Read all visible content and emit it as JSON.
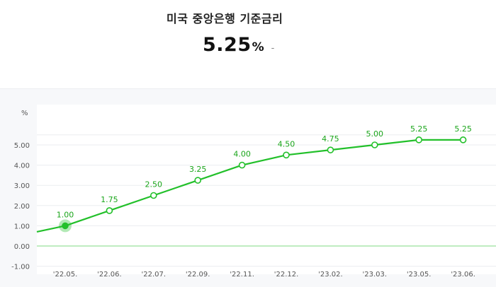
{
  "header": {
    "title": "미국 중앙은행 기준금리",
    "current_value": "5.25",
    "unit": "%",
    "change": "-"
  },
  "chart_data": {
    "type": "line",
    "categories": [
      "'22.05.",
      "'22.06.",
      "'22.07.",
      "'22.09.",
      "'22.11.",
      "'22.12.",
      "'23.02.",
      "'23.03.",
      "'23.05.",
      "'23.06."
    ],
    "series": [
      {
        "values": [
          1.0,
          1.75,
          2.5,
          3.25,
          4.0,
          4.5,
          4.75,
          5.0,
          5.25,
          5.25
        ]
      }
    ],
    "data_labels": [
      "1.00",
      "1.75",
      "2.50",
      "3.25",
      "4.00",
      "4.50",
      "4.75",
      "5.00",
      "5.25",
      "5.25"
    ],
    "ylabel": "%",
    "y_ticks": [
      -1,
      0,
      1,
      2,
      3,
      4,
      5
    ],
    "y_tick_labels": [
      "-1.00",
      "0.00",
      "1.00",
      "2.00",
      "3.00",
      "4.00",
      "5.00"
    ],
    "ylim": [
      -1.0,
      5.8
    ],
    "lead_in_value": 0.7,
    "highlighted_index": 0,
    "grid": true,
    "colors": {
      "line": "#22c02a",
      "label": "#1aa51a",
      "baseline": "#7fd982",
      "grid": "#ebedf0"
    }
  }
}
